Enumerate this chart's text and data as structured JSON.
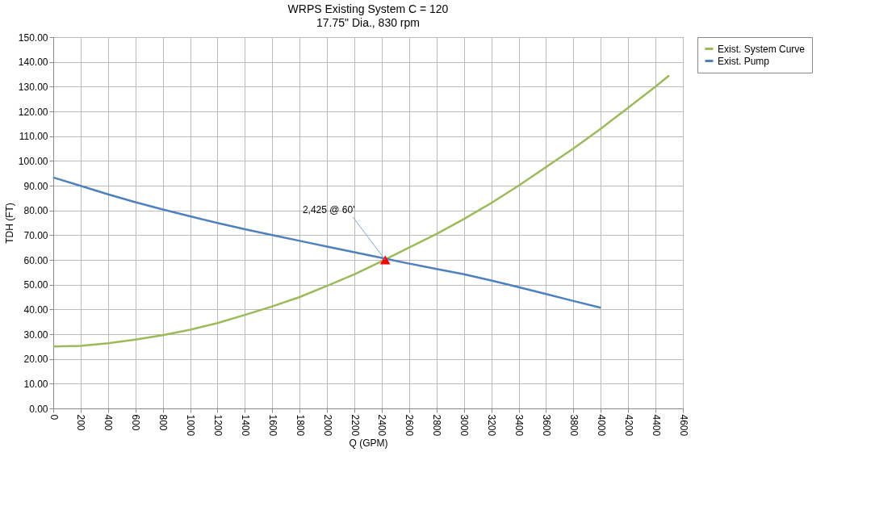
{
  "chart_data": {
    "type": "line",
    "title": "WRPS Existing System C = 120",
    "subtitle": "17.75\" Dia., 830 rpm",
    "xlabel": "Q (GPM)",
    "ylabel": "TDH (FT)",
    "x": [
      0,
      200,
      400,
      600,
      800,
      1000,
      1200,
      1400,
      1600,
      1800,
      2000,
      2200,
      2400,
      2600,
      2800,
      3000,
      3200,
      3400,
      3600,
      3800,
      4000,
      4200,
      4400,
      4500
    ],
    "series": [
      {
        "name": "Exist. System Curve",
        "color": "#9bbb59",
        "values": [
          25,
          25.3,
          26.3,
          27.8,
          29.6,
          31.8,
          34.5,
          37.8,
          41.2,
          45,
          49.5,
          54.2,
          59.5,
          65,
          70.5,
          76.5,
          83,
          90,
          97.5,
          105,
          113,
          121.5,
          130,
          134.5
        ]
      },
      {
        "name": "Exist. Pump",
        "color": "#4f81bd",
        "x": [
          0,
          200,
          400,
          600,
          800,
          1000,
          1200,
          1400,
          1600,
          1800,
          2000,
          2200,
          2400,
          2600,
          2800,
          3000,
          3200,
          3400,
          3600,
          3800,
          4000
        ],
        "values": [
          93.3,
          89.9,
          86.5,
          83.3,
          80.4,
          77.6,
          74.9,
          72.4,
          70,
          67.7,
          65.4,
          63.1,
          60.8,
          58.5,
          56.3,
          54.2,
          51.7,
          49,
          46.2,
          43.4,
          40.7
        ]
      },
      {
        "type": "scatter",
        "marker": "triangle",
        "color": "#ff0000",
        "x": [
          2425
        ],
        "values": [
          60
        ]
      }
    ],
    "annotations": [
      {
        "text": "2,425 @ 60'",
        "x": 2425,
        "y": 60
      }
    ],
    "xlim": [
      0,
      4600
    ],
    "xticks": [
      0,
      200,
      400,
      600,
      800,
      1000,
      1200,
      1400,
      1600,
      1800,
      2000,
      2200,
      2400,
      2600,
      2800,
      3000,
      3200,
      3400,
      3600,
      3800,
      4000,
      4200,
      4400,
      4600
    ],
    "ylim": [
      0,
      150
    ],
    "yticks": [
      {
        "value": 0,
        "label": "0.00"
      },
      {
        "value": 10,
        "label": "10.00"
      },
      {
        "value": 20,
        "label": "20.00"
      },
      {
        "value": 30,
        "label": "30.00"
      },
      {
        "value": 40,
        "label": "40.00"
      },
      {
        "value": 50,
        "label": "50.00"
      },
      {
        "value": 60,
        "label": "60.00"
      },
      {
        "value": 70,
        "label": "70.00"
      },
      {
        "value": 80,
        "label": "80.00"
      },
      {
        "value": 90,
        "label": "90.00"
      },
      {
        "value": 100,
        "label": "100.00"
      },
      {
        "value": 110,
        "label": "110.00"
      },
      {
        "value": 120,
        "label": "120.00"
      },
      {
        "value": 130,
        "label": "130.00"
      },
      {
        "value": 140,
        "label": "140.00"
      },
      {
        "value": 150,
        "label": "150.00"
      }
    ],
    "grid": true,
    "legend": "right",
    "marker": "none",
    "line_style": "solid"
  }
}
